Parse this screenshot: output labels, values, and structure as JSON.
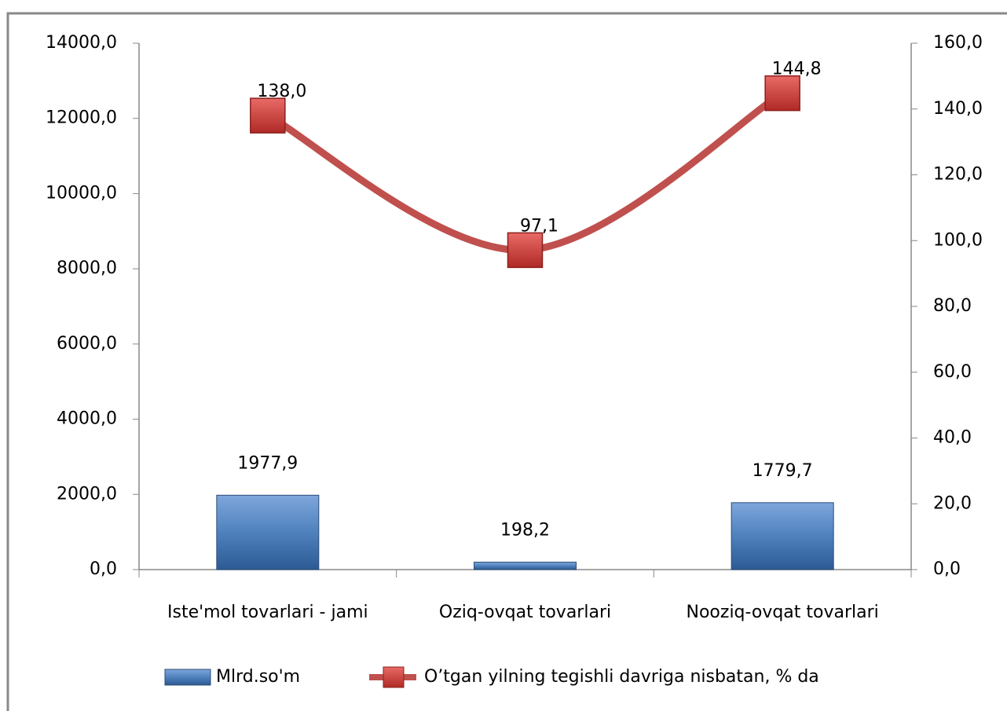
{
  "chart_data": {
    "type": "bar",
    "categories": [
      "Iste'mol tovarlari - jami",
      "Oziq-ovqat tovarlari",
      "Nooziq-ovqat tovarlari"
    ],
    "series": [
      {
        "name": "Mlrd.so'm",
        "type": "bar",
        "color": "#4f81bd",
        "values": [
          1977.9,
          198.2,
          1779.7
        ],
        "value_labels": [
          "1977,9",
          "198,2",
          "1779,7"
        ]
      },
      {
        "name": "O’tgan yilning tegishli davriga nisbatan, % da",
        "type": "line",
        "axis": "y2",
        "color": "#c0504d",
        "values": [
          138.0,
          97.1,
          144.8
        ],
        "value_labels": [
          "138,0",
          "97,1",
          "144,8"
        ]
      }
    ],
    "ylim": [
      0,
      14000
    ],
    "yticks": [
      {
        "value": 0,
        "label": "0,0"
      },
      {
        "value": 2000,
        "label": "2000,0"
      },
      {
        "value": 4000,
        "label": "4000,0"
      },
      {
        "value": 6000,
        "label": "6000,0"
      },
      {
        "value": 8000,
        "label": "8000,0"
      },
      {
        "value": 10000,
        "label": "10000,0"
      },
      {
        "value": 12000,
        "label": "12000,0"
      },
      {
        "value": 14000,
        "label": "14000,0"
      }
    ],
    "y2lim": [
      0,
      160
    ],
    "y2ticks": [
      {
        "value": 0,
        "label": "0,0"
      },
      {
        "value": 20,
        "label": "20,0"
      },
      {
        "value": 40,
        "label": "40,0"
      },
      {
        "value": 60,
        "label": "60,0"
      },
      {
        "value": 80,
        "label": "80,0"
      },
      {
        "value": 100,
        "label": "100,0"
      },
      {
        "value": 120,
        "label": "120,0"
      },
      {
        "value": 140,
        "label": "140,0"
      },
      {
        "value": 160,
        "label": "160,0"
      }
    ],
    "legend": "bottom"
  }
}
